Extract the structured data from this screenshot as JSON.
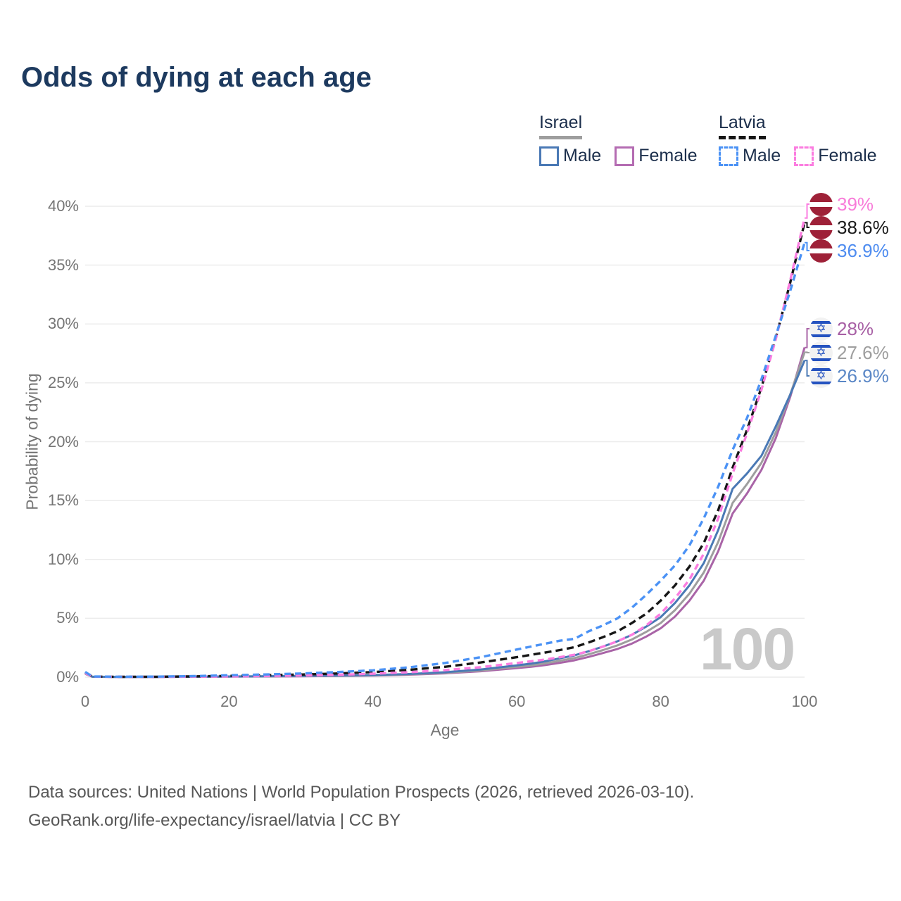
{
  "title": "Odds of dying at each age",
  "legend": {
    "groups": [
      {
        "country": "Israel",
        "underline_style": "solid",
        "underline_color": "#9e9e9e",
        "male_label": "Male",
        "female_label": "Female"
      },
      {
        "country": "Latvia",
        "underline_style": "dashed",
        "underline_color": "#161616",
        "male_label": "Male",
        "female_label": "Female"
      }
    ],
    "swatches": [
      {
        "id": "israel-male",
        "color": "#4a79b5",
        "dashed": false
      },
      {
        "id": "israel-female",
        "color": "#b46cb2",
        "dashed": false
      },
      {
        "id": "latvia-male",
        "color": "#4b92f5",
        "dashed": true
      },
      {
        "id": "latvia-female",
        "color": "#fb7de0",
        "dashed": true
      }
    ]
  },
  "chart_data": {
    "type": "line",
    "title": "Odds of dying at each age",
    "xlabel": "Age",
    "ylabel": "Probability of dying",
    "xlim": [
      0,
      100
    ],
    "ylim": [
      0,
      40
    ],
    "grid": "horizontal-only",
    "legend_position": "top-right",
    "xtick_values": [
      0,
      20,
      40,
      60,
      80,
      100
    ],
    "xticks": [
      "0",
      "20",
      "40",
      "60",
      "80",
      "100"
    ],
    "ytick_values": [
      0,
      5,
      10,
      15,
      20,
      25,
      30,
      35,
      40
    ],
    "yticks": [
      "0%",
      "5%",
      "10%",
      "15%",
      "20%",
      "25%",
      "30%",
      "35%",
      "40%"
    ],
    "x": [
      0,
      1,
      5,
      10,
      15,
      20,
      25,
      30,
      35,
      40,
      45,
      50,
      55,
      60,
      62,
      64,
      66,
      68,
      70,
      72,
      74,
      76,
      78,
      80,
      82,
      84,
      86,
      88,
      90,
      92,
      94,
      96,
      98,
      100
    ],
    "series": [
      {
        "name": "Israel Male",
        "color": "#4a79b5",
        "dash": null,
        "values": [
          0.35,
          0.04,
          0.016,
          0.022,
          0.042,
          0.062,
          0.08,
          0.1,
          0.13,
          0.18,
          0.27,
          0.42,
          0.65,
          1.0,
          1.15,
          1.35,
          1.6,
          1.85,
          2.2,
          2.6,
          3.05,
          3.6,
          4.3,
          5.1,
          6.3,
          7.8,
          9.7,
          12.5,
          16.0,
          17.3,
          18.8,
          21.3,
          24.0,
          26.9
        ],
        "end_value_label": "26.9%"
      },
      {
        "name": "Israel Total",
        "color": "#9e9e9e",
        "dash": null,
        "values": [
          0.3,
          0.035,
          0.014,
          0.02,
          0.035,
          0.055,
          0.07,
          0.09,
          0.115,
          0.16,
          0.24,
          0.37,
          0.57,
          0.88,
          1.0,
          1.18,
          1.4,
          1.62,
          1.95,
          2.3,
          2.7,
          3.2,
          3.85,
          4.6,
          5.7,
          7.1,
          8.9,
          11.5,
          14.8,
          16.4,
          18.2,
          20.8,
          24.0,
          27.6
        ],
        "end_value_label": "27.6%"
      },
      {
        "name": "Israel Female",
        "color": "#a964a7",
        "dash": null,
        "values": [
          0.28,
          0.03,
          0.012,
          0.017,
          0.028,
          0.045,
          0.06,
          0.078,
          0.1,
          0.14,
          0.21,
          0.32,
          0.5,
          0.77,
          0.88,
          1.03,
          1.22,
          1.43,
          1.72,
          2.05,
          2.4,
          2.85,
          3.45,
          4.15,
          5.15,
          6.5,
          8.2,
          10.7,
          13.9,
          15.6,
          17.6,
          20.3,
          23.8,
          28.0
        ],
        "end_value_label": "28%"
      },
      {
        "name": "Latvia Male",
        "color": "#4b92f5",
        "dash": "9 6",
        "values": [
          0.45,
          0.06,
          0.035,
          0.045,
          0.09,
          0.16,
          0.23,
          0.31,
          0.43,
          0.58,
          0.83,
          1.2,
          1.7,
          2.35,
          2.6,
          2.85,
          3.1,
          3.25,
          3.9,
          4.4,
          5.0,
          5.9,
          7.0,
          8.2,
          9.5,
          11.2,
          13.5,
          16.2,
          19.3,
          22.0,
          25.3,
          29.0,
          32.8,
          36.9
        ],
        "end_value_label": "36.9%"
      },
      {
        "name": "Latvia Total",
        "color": "#161616",
        "dash": "10 6",
        "values": [
          0.4,
          0.05,
          0.028,
          0.035,
          0.065,
          0.11,
          0.16,
          0.22,
          0.31,
          0.43,
          0.62,
          0.88,
          1.25,
          1.7,
          1.9,
          2.1,
          2.3,
          2.55,
          2.95,
          3.4,
          3.9,
          4.6,
          5.4,
          6.5,
          7.8,
          9.4,
          11.4,
          14.2,
          17.8,
          21.0,
          24.6,
          28.8,
          33.5,
          38.6
        ],
        "end_value_label": "38.6%"
      },
      {
        "name": "Latvia Female",
        "color": "#fb7de0",
        "dash": "9 6",
        "values": [
          0.35,
          0.045,
          0.022,
          0.028,
          0.045,
          0.065,
          0.095,
          0.135,
          0.2,
          0.29,
          0.42,
          0.6,
          0.85,
          1.2,
          1.35,
          1.5,
          1.7,
          1.9,
          2.2,
          2.6,
          3.05,
          3.6,
          4.4,
          5.4,
          6.7,
          8.3,
          10.5,
          13.5,
          17.3,
          20.7,
          24.4,
          28.7,
          33.7,
          39.0
        ],
        "end_value_label": "39%"
      }
    ],
    "draw_order": [
      2,
      1,
      0,
      4,
      5,
      3
    ]
  },
  "end_labels": [
    {
      "series": "Latvia Female",
      "flag": "latvia",
      "text": "39%",
      "color": "#f87cd9"
    },
    {
      "series": "Latvia Total",
      "flag": "latvia",
      "text": "38.6%",
      "color": "#1a1a1a"
    },
    {
      "series": "Latvia Male",
      "flag": "latvia",
      "text": "36.9%",
      "color": "#4e8cf0"
    },
    {
      "series": "Israel Female",
      "flag": "israel",
      "text": "28%",
      "color": "#a75fa4"
    },
    {
      "series": "Israel Total",
      "flag": "israel",
      "text": "27.6%",
      "color": "#9e9e9e"
    },
    {
      "series": "Israel Male",
      "flag": "israel",
      "text": "26.9%",
      "color": "#5a87c6"
    }
  ],
  "icons": {
    "israel_star": "✡"
  },
  "watermark": "100",
  "footer": {
    "line1": "Data sources: United Nations | World Population Prospects (2026, retrieved 2026-03-10).",
    "line2": "GeoRank.org/life-expectancy/israel/latvia | CC BY"
  }
}
